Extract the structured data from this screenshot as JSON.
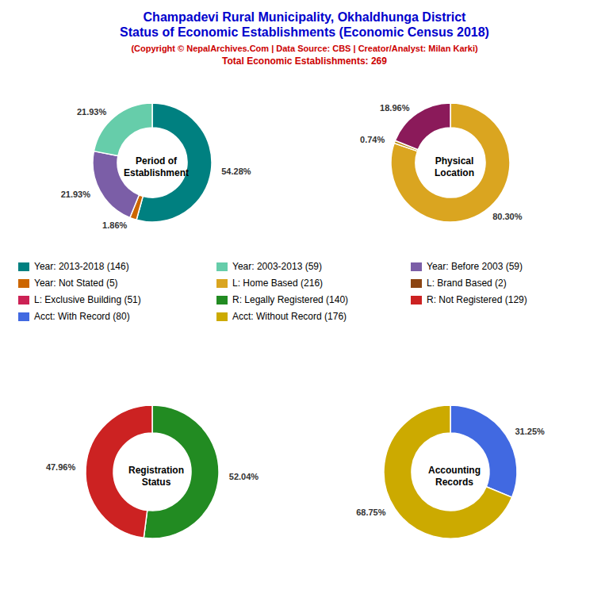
{
  "title": {
    "lines": [
      "Champadevi Rural Municipality, Okhaldhunga District",
      "Status of Economic Establishments (Economic Census 2018)"
    ],
    "color": "#0000cc"
  },
  "subtitle": {
    "lines": [
      "(Copyright © NepalArchives.Com | Data Source: CBS | Creator/Analyst: Milan Karki)",
      "Total Economic Establishments: 269"
    ],
    "color": "#cc0000"
  },
  "chart_data": [
    {
      "type": "pie",
      "title": "Period of\nEstablishment",
      "values": [
        54.28,
        1.86,
        21.93,
        21.93
      ],
      "value_labels": [
        "54.28%",
        "1.86%",
        "21.93%",
        "21.93%"
      ],
      "colors": [
        "#008080",
        "#cc6600",
        "#7b5ea7",
        "#66cdaa"
      ],
      "data_labels": true
    },
    {
      "type": "pie",
      "title": "Physical\nLocation",
      "values": [
        80.3,
        0.74,
        18.96
      ],
      "value_labels": [
        "80.30%",
        "0.74%",
        "18.96%"
      ],
      "colors": [
        "#daa520",
        "#b8860b",
        "#8b1a5a"
      ],
      "data_labels": true
    },
    {
      "type": "pie",
      "title": "Registration\nStatus",
      "values": [
        52.04,
        47.96
      ],
      "value_labels": [
        "52.04%",
        "47.96%"
      ],
      "colors": [
        "#228b22",
        "#cc2222"
      ],
      "data_labels": true
    },
    {
      "type": "pie",
      "title": "Accounting\nRecords",
      "values": [
        31.25,
        68.75
      ],
      "value_labels": [
        "31.25%",
        "68.75%"
      ],
      "colors": [
        "#4169e1",
        "#ccaa00"
      ],
      "data_labels": true
    }
  ],
  "legend_entries": [
    {
      "name": "Year: 2013-2018 (146)",
      "color": "#008080"
    },
    {
      "name": "Year: 2003-2013 (59)",
      "color": "#66cdaa"
    },
    {
      "name": "Year: Before 2003 (59)",
      "color": "#7b5ea7"
    },
    {
      "name": "Year: Not Stated (5)",
      "color": "#cc6600"
    },
    {
      "name": "L: Home Based (216)",
      "color": "#daa520"
    },
    {
      "name": "L: Brand Based (2)",
      "color": "#8b4513"
    },
    {
      "name": "L: Exclusive Building (51)",
      "color": "#cc2255"
    },
    {
      "name": "R: Legally Registered (140)",
      "color": "#228b22"
    },
    {
      "name": "R: Not Registered (129)",
      "color": "#cc2222"
    },
    {
      "name": "Acct: With Record (80)",
      "color": "#4169e1"
    },
    {
      "name": "Acct: Without Record (176)",
      "color": "#ccaa00"
    }
  ]
}
